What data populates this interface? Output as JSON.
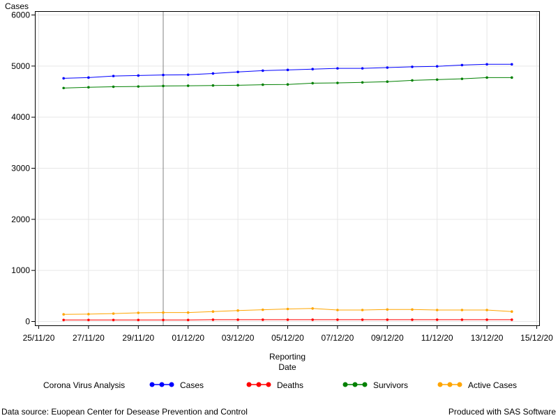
{
  "footnote_left": "Data source: Euopean Center for Desease Prevention and Control",
  "footnote_right": "Produced with SAS Software",
  "chart_data": {
    "type": "line",
    "title": "",
    "ylabel": "Cases",
    "xlabel_lines": [
      "Reporting",
      "Date"
    ],
    "legend_title": "Corona Virus Analysis",
    "legend_position": "bottom",
    "grid": true,
    "ylim": [
      0,
      6000
    ],
    "yticks": [
      0,
      1000,
      2000,
      3000,
      4000,
      5000,
      6000
    ],
    "xlim": [
      "2020-11-25",
      "2020-12-15"
    ],
    "xticks": [
      {
        "date": "2020-11-25",
        "label": "25/11/20"
      },
      {
        "date": "2020-11-27",
        "label": "27/11/20"
      },
      {
        "date": "2020-11-29",
        "label": "29/11/20"
      },
      {
        "date": "2020-12-01",
        "label": "01/12/20"
      },
      {
        "date": "2020-12-03",
        "label": "03/12/20"
      },
      {
        "date": "2020-12-05",
        "label": "05/12/20"
      },
      {
        "date": "2020-12-07",
        "label": "07/12/20"
      },
      {
        "date": "2020-12-09",
        "label": "09/12/20"
      },
      {
        "date": "2020-12-11",
        "label": "11/12/20"
      },
      {
        "date": "2020-12-13",
        "label": "13/12/20"
      },
      {
        "date": "2020-12-15",
        "label": "15/12/20"
      }
    ],
    "reference_line_x": "2020-11-30",
    "x": [
      "2020-11-26",
      "2020-11-27",
      "2020-11-28",
      "2020-11-29",
      "2020-11-30",
      "2020-12-01",
      "2020-12-02",
      "2020-12-03",
      "2020-12-04",
      "2020-12-05",
      "2020-12-06",
      "2020-12-07",
      "2020-12-08",
      "2020-12-09",
      "2020-12-10",
      "2020-12-11",
      "2020-12-12",
      "2020-12-13",
      "2020-12-14"
    ],
    "series": [
      {
        "name": "Cases",
        "color": "#0000ff",
        "values": [
          4760,
          4775,
          4805,
          4815,
          4825,
          4830,
          4855,
          4885,
          4910,
          4925,
          4940,
          4955,
          4955,
          4970,
          4985,
          4995,
          5020,
          5035,
          5035
        ]
      },
      {
        "name": "Deaths",
        "color": "#ff0000",
        "values": [
          30,
          30,
          30,
          30,
          30,
          30,
          35,
          35,
          35,
          35,
          35,
          35,
          35,
          35,
          35,
          35,
          35,
          35,
          35
        ]
      },
      {
        "name": "Survivors",
        "color": "#008000",
        "values": [
          4570,
          4585,
          4595,
          4600,
          4610,
          4615,
          4620,
          4625,
          4635,
          4640,
          4665,
          4670,
          4680,
          4695,
          4720,
          4735,
          4750,
          4775,
          4775
        ]
      },
      {
        "name": "Active Cases",
        "color": "#ffa500",
        "values": [
          140,
          145,
          155,
          170,
          175,
          175,
          195,
          215,
          230,
          245,
          255,
          225,
          225,
          235,
          235,
          225,
          225,
          225,
          195
        ]
      }
    ]
  }
}
